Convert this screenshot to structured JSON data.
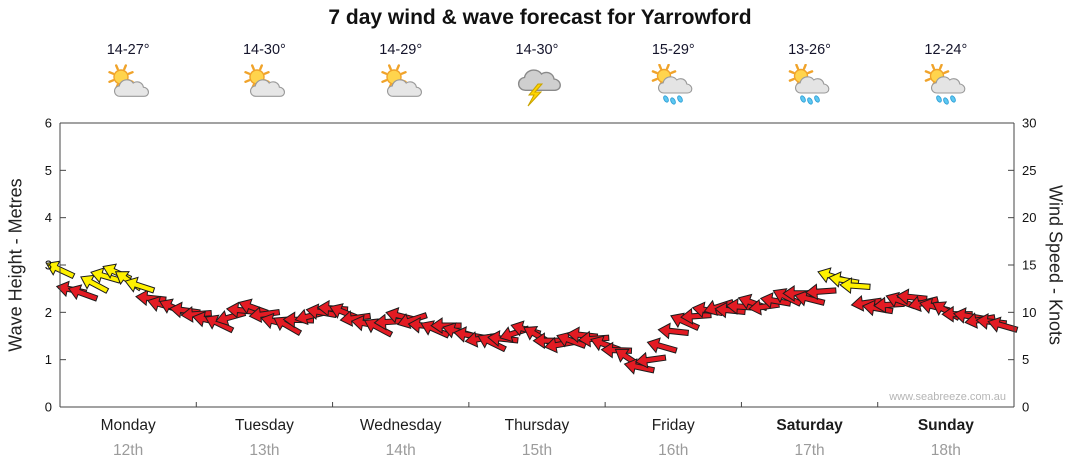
{
  "title": "7 day wind & wave forecast for Yarrowford",
  "watermark": "www.seabreeze.com.au",
  "days": [
    {
      "name": "Monday",
      "date": "12th",
      "temp": "14-27°",
      "icon": "partly-cloudy",
      "bold": false
    },
    {
      "name": "Tuesday",
      "date": "13th",
      "temp": "14-30°",
      "icon": "partly-cloudy",
      "bold": false
    },
    {
      "name": "Wednesday",
      "date": "14th",
      "temp": "14-29°",
      "icon": "partly-cloudy",
      "bold": false
    },
    {
      "name": "Thursday",
      "date": "15th",
      "temp": "14-30°",
      "icon": "storm",
      "bold": false
    },
    {
      "name": "Friday",
      "date": "16th",
      "temp": "15-29°",
      "icon": "sun-showers",
      "bold": false
    },
    {
      "name": "Saturday",
      "date": "17th",
      "temp": "13-26°",
      "icon": "sun-showers",
      "bold": true
    },
    {
      "name": "Sunday",
      "date": "18th",
      "temp": "12-24°",
      "icon": "sun-showers",
      "bold": true
    }
  ],
  "chart_data": {
    "type": "scatter",
    "title": "7 day wind & wave forecast for Yarrowford",
    "x_axis": {
      "unit": "hours",
      "range": [
        0,
        168
      ],
      "day_labels": [
        "Monday",
        "Tuesday",
        "Wednesday",
        "Thursday",
        "Friday",
        "Saturday",
        "Sunday"
      ],
      "day_dates": [
        "12th",
        "13th",
        "14th",
        "15th",
        "16th",
        "17th",
        "18th"
      ]
    },
    "y_left": {
      "label": "Wave Height - Metres",
      "range": [
        0,
        6
      ],
      "ticks": [
        0,
        1,
        2,
        3,
        4,
        5,
        6
      ]
    },
    "y_right": {
      "label": "Wind Speed - Knots",
      "range": [
        0,
        30
      ],
      "ticks": [
        0,
        5,
        10,
        15,
        20,
        25,
        30
      ]
    },
    "colors": {
      "normal": "#e31b23",
      "strong": "#fff100",
      "outline": "#1c1c1c"
    },
    "series": [
      {
        "name": "Wind speed & direction",
        "units": "knots",
        "point_format": [
          "hour",
          "knots",
          "direction_deg",
          "is_strong_yellow"
        ],
        "points": [
          [
            0,
            14.5,
            205,
            1
          ],
          [
            2,
            12.4,
            192,
            0
          ],
          [
            4,
            12.0,
            200,
            0
          ],
          [
            6,
            13.0,
            208,
            1
          ],
          [
            8,
            13.8,
            196,
            1
          ],
          [
            10,
            14.2,
            204,
            1
          ],
          [
            12,
            13.4,
            214,
            1
          ],
          [
            14,
            12.8,
            198,
            1
          ],
          [
            16,
            11.5,
            186,
            0
          ],
          [
            18,
            10.8,
            196,
            0
          ],
          [
            20,
            10.5,
            204,
            0
          ],
          [
            22,
            10.2,
            188,
            0
          ],
          [
            24,
            9.8,
            176,
            0
          ],
          [
            26,
            9.2,
            192,
            0
          ],
          [
            28,
            8.8,
            206,
            0
          ],
          [
            30,
            9.5,
            164,
            0
          ],
          [
            32,
            10.2,
            186,
            0
          ],
          [
            34,
            10.5,
            200,
            0
          ],
          [
            36,
            9.8,
            172,
            0
          ],
          [
            38,
            9.0,
            194,
            0
          ],
          [
            40,
            8.6,
            210,
            0
          ],
          [
            42,
            9.2,
            182,
            0
          ],
          [
            44,
            9.6,
            166,
            0
          ],
          [
            46,
            10.0,
            190,
            0
          ],
          [
            48,
            10.4,
            184,
            0
          ],
          [
            50,
            10.0,
            202,
            0
          ],
          [
            52,
            9.4,
            172,
            0
          ],
          [
            54,
            8.8,
            190,
            0
          ],
          [
            56,
            8.4,
            208,
            0
          ],
          [
            58,
            9.0,
            176,
            0
          ],
          [
            60,
            9.6,
            194,
            0
          ],
          [
            62,
            9.2,
            162,
            0
          ],
          [
            64,
            8.6,
            186,
            0
          ],
          [
            66,
            8.2,
            204,
            0
          ],
          [
            68,
            8.6,
            180,
            0
          ],
          [
            70,
            8.0,
            196,
            0
          ],
          [
            72,
            7.6,
            190,
            0
          ],
          [
            74,
            7.2,
            170,
            0
          ],
          [
            76,
            6.8,
            206,
            0
          ],
          [
            78,
            7.2,
            186,
            0
          ],
          [
            80,
            7.8,
            162,
            0
          ],
          [
            82,
            8.2,
            196,
            0
          ],
          [
            84,
            7.6,
            210,
            0
          ],
          [
            86,
            7.0,
            180,
            0
          ],
          [
            88,
            6.6,
            170,
            0
          ],
          [
            90,
            7.0,
            200,
            0
          ],
          [
            92,
            7.6,
            186,
            0
          ],
          [
            94,
            7.2,
            176,
            0
          ],
          [
            96,
            6.6,
            200,
            0
          ],
          [
            98,
            6.0,
            182,
            0
          ],
          [
            100,
            5.2,
            214,
            0
          ],
          [
            102,
            4.2,
            192,
            0
          ],
          [
            104,
            5.0,
            172,
            0
          ],
          [
            106,
            6.4,
            196,
            0
          ],
          [
            108,
            8.0,
            186,
            0
          ],
          [
            110,
            9.0,
            204,
            0
          ],
          [
            112,
            9.6,
            176,
            0
          ],
          [
            114,
            10.2,
            190,
            0
          ],
          [
            116,
            10.6,
            162,
            0
          ],
          [
            118,
            10.2,
            186,
            0
          ],
          [
            120,
            10.6,
            184,
            0
          ],
          [
            122,
            11.0,
            200,
            0
          ],
          [
            124,
            10.6,
            172,
            0
          ],
          [
            126,
            11.2,
            190,
            0
          ],
          [
            128,
            11.6,
            206,
            0
          ],
          [
            130,
            12.0,
            180,
            0
          ],
          [
            132,
            11.4,
            194,
            0
          ],
          [
            134,
            12.2,
            176,
            0
          ],
          [
            136,
            13.8,
            198,
            1
          ],
          [
            138,
            13.4,
            190,
            1
          ],
          [
            140,
            12.8,
            184,
            1
          ],
          [
            142,
            11.0,
            172,
            0
          ],
          [
            144,
            10.4,
            190,
            0
          ],
          [
            146,
            10.8,
            176,
            0
          ],
          [
            148,
            11.2,
            200,
            0
          ],
          [
            150,
            11.6,
            186,
            0
          ],
          [
            152,
            11.0,
            166,
            0
          ],
          [
            154,
            10.6,
            194,
            0
          ],
          [
            156,
            10.2,
            210,
            0
          ],
          [
            158,
            9.8,
            180,
            0
          ],
          [
            160,
            9.6,
            190,
            0
          ],
          [
            162,
            9.2,
            170,
            0
          ],
          [
            164,
            9.0,
            186,
            0
          ],
          [
            166,
            8.6,
            196,
            0
          ]
        ]
      }
    ]
  }
}
